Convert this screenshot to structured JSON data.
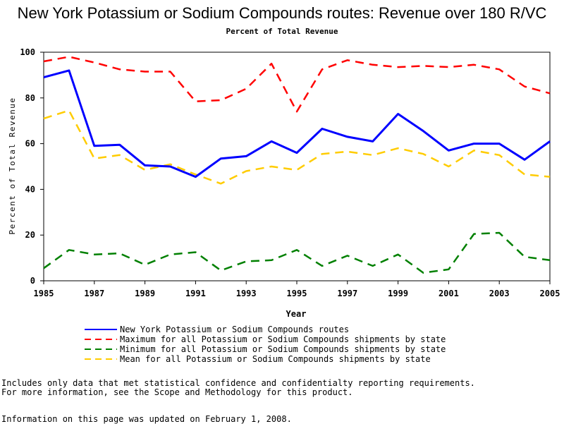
{
  "title": "New York Potassium or Sodium Compounds routes: Revenue over 180 R/VC",
  "subtitle": "Percent of Total Revenue",
  "footnotes": {
    "line1": "Includes only data that met statistical confidence and confidentialty reporting requirements.",
    "line2": "For more information, see the Scope and Methodology for this product.",
    "line3": "Information on this page was updated on February 1, 2008."
  },
  "chart_data": {
    "type": "line",
    "title": "New York Potassium or Sodium Compounds routes: Revenue over 180 R/VC",
    "subtitle": "Percent of Total Revenue",
    "xlabel": "Year",
    "ylabel": "Percent of Total Revenue",
    "xlim": [
      1985,
      2005
    ],
    "ylim": [
      0,
      100
    ],
    "x_ticks": [
      "1985",
      "1987",
      "1989",
      "1991",
      "1993",
      "1995",
      "1997",
      "1999",
      "2001",
      "2003",
      "2005"
    ],
    "y_ticks": [
      "0",
      "20",
      "40",
      "60",
      "80",
      "100"
    ],
    "grid": false,
    "legend_position": "bottom",
    "x": [
      1985,
      1986,
      1987,
      1988,
      1989,
      1990,
      1991,
      1992,
      1993,
      1994,
      1995,
      1996,
      1997,
      1998,
      1999,
      2000,
      2001,
      2002,
      2003,
      2004,
      2005
    ],
    "series": [
      {
        "name": "New York Potassium or Sodium Compounds routes",
        "color": "#0000ff",
        "style": "solid",
        "values": [
          89,
          92,
          59,
          59.5,
          50.5,
          50,
          45.5,
          53.5,
          54.5,
          61,
          56,
          66.5,
          63,
          61,
          73,
          65.5,
          57,
          60,
          60,
          53,
          61
        ]
      },
      {
        "name": "Maximum for all Potassium or Sodium Compounds shipments by state",
        "color": "#ff0000",
        "style": "dashed",
        "values": [
          96,
          98,
          95.5,
          92.5,
          91.5,
          91.5,
          78.5,
          79,
          84,
          95,
          74,
          92.5,
          96.5,
          94.5,
          93.5,
          94,
          93.5,
          94.5,
          92.5,
          85,
          82
        ]
      },
      {
        "name": "Minimum for all Potassium or Sodium Compounds shipments by state",
        "color": "#008000",
        "style": "dashed",
        "values": [
          5.5,
          13.5,
          11.5,
          12,
          7,
          11.5,
          12.5,
          4.5,
          8.5,
          9,
          13.5,
          6.5,
          11,
          6.5,
          11.5,
          3.5,
          5,
          20.5,
          21,
          10.5,
          9
        ]
      },
      {
        "name": "Mean for all Potassium or Sodium Compounds shipments by state",
        "color": "#ffcc00",
        "style": "dashed",
        "values": [
          71,
          74.5,
          53.5,
          55,
          48.5,
          51,
          46.5,
          42.5,
          48,
          50,
          48.5,
          55.5,
          56.5,
          55,
          58,
          55.5,
          50,
          57,
          55,
          46.5,
          45.5
        ]
      }
    ]
  }
}
